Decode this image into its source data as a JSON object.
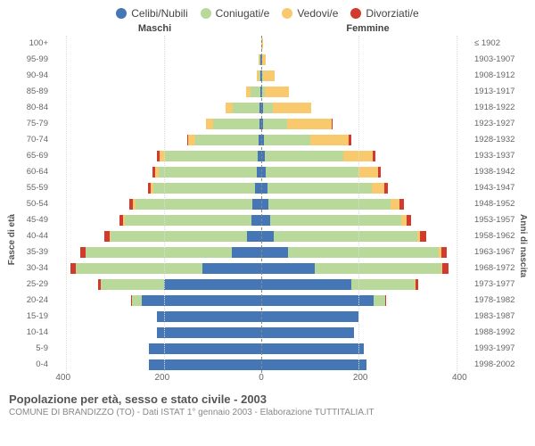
{
  "chart": {
    "type": "population-pyramid",
    "legend": [
      {
        "label": "Celibi/Nubili",
        "color": "#4576b5"
      },
      {
        "label": "Coniugati/e",
        "color": "#b9d99a"
      },
      {
        "label": "Vedovi/e",
        "color": "#f8c96d"
      },
      {
        "label": "Divorziati/e",
        "color": "#d23a2e"
      }
    ],
    "header_left": "Maschi",
    "header_right": "Femmine",
    "y_left_title": "Fasce di età",
    "y_right_title": "Anni di nascita",
    "age_labels": [
      "100+",
      "95-99",
      "90-94",
      "85-89",
      "80-84",
      "75-79",
      "70-74",
      "65-69",
      "60-64",
      "55-59",
      "50-54",
      "45-49",
      "40-44",
      "35-39",
      "30-34",
      "25-29",
      "20-24",
      "15-19",
      "10-14",
      "5-9",
      "0-4"
    ],
    "birth_labels": [
      "≤ 1902",
      "1903-1907",
      "1908-1912",
      "1913-1917",
      "1918-1922",
      "1923-1927",
      "1928-1932",
      "1933-1937",
      "1938-1942",
      "1943-1947",
      "1948-1952",
      "1953-1957",
      "1958-1962",
      "1963-1967",
      "1968-1972",
      "1973-1977",
      "1978-1982",
      "1983-1987",
      "1988-1992",
      "1993-1997",
      "1998-2002"
    ],
    "xlim": 430,
    "x_ticks": [
      400,
      200,
      0,
      200,
      400
    ],
    "male": [
      {
        "c": 0,
        "m": 0,
        "w": 0,
        "d": 0
      },
      {
        "c": 1,
        "m": 2,
        "w": 2,
        "d": 0
      },
      {
        "c": 2,
        "m": 4,
        "w": 4,
        "d": 0
      },
      {
        "c": 2,
        "m": 20,
        "w": 10,
        "d": 0
      },
      {
        "c": 3,
        "m": 55,
        "w": 15,
        "d": 0
      },
      {
        "c": 4,
        "m": 95,
        "w": 15,
        "d": 0
      },
      {
        "c": 5,
        "m": 130,
        "w": 15,
        "d": 2
      },
      {
        "c": 8,
        "m": 190,
        "w": 10,
        "d": 6
      },
      {
        "c": 10,
        "m": 200,
        "w": 8,
        "d": 6
      },
      {
        "c": 12,
        "m": 210,
        "w": 5,
        "d": 6
      },
      {
        "c": 18,
        "m": 240,
        "w": 5,
        "d": 8
      },
      {
        "c": 20,
        "m": 260,
        "w": 3,
        "d": 8
      },
      {
        "c": 30,
        "m": 280,
        "w": 2,
        "d": 10
      },
      {
        "c": 60,
        "m": 300,
        "w": 1,
        "d": 10
      },
      {
        "c": 120,
        "m": 260,
        "w": 1,
        "d": 10
      },
      {
        "c": 200,
        "m": 130,
        "w": 0,
        "d": 5
      },
      {
        "c": 245,
        "m": 20,
        "w": 0,
        "d": 2
      },
      {
        "c": 215,
        "m": 0,
        "w": 0,
        "d": 0
      },
      {
        "c": 215,
        "m": 0,
        "w": 0,
        "d": 0
      },
      {
        "c": 230,
        "m": 0,
        "w": 0,
        "d": 0
      },
      {
        "c": 230,
        "m": 0,
        "w": 0,
        "d": 0
      }
    ],
    "female": [
      {
        "c": 0,
        "m": 0,
        "w": 3,
        "d": 0
      },
      {
        "c": 1,
        "m": 0,
        "w": 8,
        "d": 0
      },
      {
        "c": 2,
        "m": 1,
        "w": 25,
        "d": 0
      },
      {
        "c": 2,
        "m": 5,
        "w": 50,
        "d": 0
      },
      {
        "c": 3,
        "m": 20,
        "w": 80,
        "d": 0
      },
      {
        "c": 4,
        "m": 50,
        "w": 90,
        "d": 2
      },
      {
        "c": 5,
        "m": 95,
        "w": 80,
        "d": 4
      },
      {
        "c": 8,
        "m": 160,
        "w": 60,
        "d": 6
      },
      {
        "c": 10,
        "m": 190,
        "w": 40,
        "d": 6
      },
      {
        "c": 12,
        "m": 215,
        "w": 25,
        "d": 8
      },
      {
        "c": 15,
        "m": 250,
        "w": 18,
        "d": 10
      },
      {
        "c": 18,
        "m": 270,
        "w": 10,
        "d": 10
      },
      {
        "c": 25,
        "m": 295,
        "w": 6,
        "d": 12
      },
      {
        "c": 55,
        "m": 310,
        "w": 4,
        "d": 12
      },
      {
        "c": 110,
        "m": 260,
        "w": 2,
        "d": 12
      },
      {
        "c": 185,
        "m": 130,
        "w": 1,
        "d": 6
      },
      {
        "c": 230,
        "m": 25,
        "w": 0,
        "d": 2
      },
      {
        "c": 200,
        "m": 0,
        "w": 0,
        "d": 0
      },
      {
        "c": 190,
        "m": 0,
        "w": 0,
        "d": 0
      },
      {
        "c": 210,
        "m": 0,
        "w": 0,
        "d": 0
      },
      {
        "c": 215,
        "m": 0,
        "w": 0,
        "d": 0
      }
    ]
  },
  "footer": {
    "title": "Popolazione per età, sesso e stato civile - 2003",
    "subtitle": "COMUNE DI BRANDIZZO (TO) - Dati ISTAT 1° gennaio 2003 - Elaborazione TUTTITALIA.IT"
  }
}
